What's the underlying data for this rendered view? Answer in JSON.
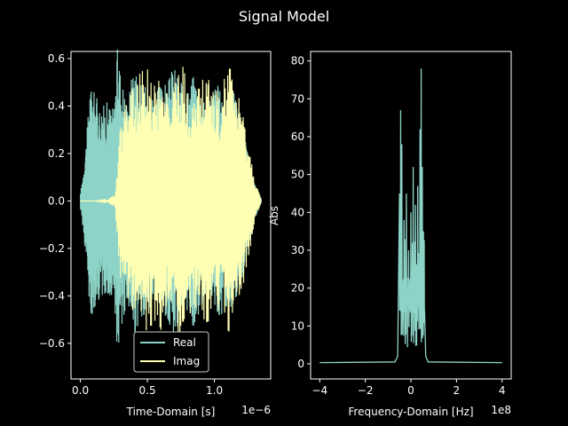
{
  "chart_data": {
    "title": "Signal Model",
    "colors": {
      "background": "#000000",
      "foreground": "#ffffff",
      "real": "#8dd3c7",
      "imag": "#ffffb3",
      "abs": "#8dd3c7"
    },
    "panels": [
      {
        "type": "line",
        "xlabel": "Time-Domain [s]",
        "ylabel": "",
        "x_offset_label": "1e−6",
        "xlim": [
          -0.07,
          1.42
        ],
        "ylim": [
          -0.75,
          0.63
        ],
        "xticks": [
          0.0,
          0.5,
          1.0
        ],
        "xtick_labels": [
          "0.0",
          "0.5",
          "1.0"
        ],
        "yticks": [
          -0.6,
          -0.4,
          -0.2,
          0.0,
          0.2,
          0.4,
          0.6
        ],
        "ytick_labels": [
          "−0.6",
          "−0.4",
          "−0.2",
          "0.0",
          "0.2",
          "0.4",
          "0.6"
        ],
        "legend": {
          "placement": "lower center",
          "entries": [
            "Real",
            "Imag"
          ]
        },
        "series": [
          {
            "name": "Real",
            "color": "#8dd3c7",
            "envelope": [
              [
                0.0,
                0.03
              ],
              [
                0.02,
                0.12
              ],
              [
                0.05,
                0.3
              ],
              [
                0.07,
                0.5
              ],
              [
                0.1,
                0.47
              ],
              [
                0.15,
                0.4
              ],
              [
                0.2,
                0.42
              ],
              [
                0.25,
                0.4
              ],
              [
                0.28,
                0.68
              ],
              [
                0.3,
                0.55
              ],
              [
                0.35,
                0.42
              ],
              [
                0.4,
                0.6
              ],
              [
                0.45,
                0.5
              ],
              [
                0.5,
                0.48
              ],
              [
                0.55,
                0.45
              ],
              [
                0.6,
                0.5
              ],
              [
                0.65,
                0.5
              ],
              [
                0.7,
                0.58
              ],
              [
                0.75,
                0.5
              ],
              [
                0.8,
                0.48
              ],
              [
                0.85,
                0.55
              ],
              [
                0.9,
                0.45
              ],
              [
                0.95,
                0.4
              ],
              [
                1.0,
                0.5
              ],
              [
                1.05,
                0.48
              ],
              [
                1.1,
                0.45
              ],
              [
                1.15,
                0.46
              ],
              [
                1.2,
                0.35
              ],
              [
                1.25,
                0.2
              ],
              [
                1.3,
                0.08
              ],
              [
                1.35,
                0.01
              ]
            ]
          },
          {
            "name": "Imag",
            "color": "#ffffb3",
            "envelope": [
              [
                0.0,
                0.0
              ],
              [
                0.1,
                0.0
              ],
              [
                0.2,
                0.005
              ],
              [
                0.26,
                0.03
              ],
              [
                0.3,
                0.35
              ],
              [
                0.35,
                0.45
              ],
              [
                0.4,
                0.5
              ],
              [
                0.45,
                0.55
              ],
              [
                0.5,
                0.58
              ],
              [
                0.55,
                0.5
              ],
              [
                0.6,
                0.55
              ],
              [
                0.65,
                0.48
              ],
              [
                0.7,
                0.52
              ],
              [
                0.75,
                0.6
              ],
              [
                0.8,
                0.5
              ],
              [
                0.85,
                0.45
              ],
              [
                0.9,
                0.5
              ],
              [
                0.95,
                0.55
              ],
              [
                1.0,
                0.48
              ],
              [
                1.05,
                0.45
              ],
              [
                1.1,
                0.6
              ],
              [
                1.15,
                0.5
              ],
              [
                1.2,
                0.4
              ],
              [
                1.25,
                0.25
              ],
              [
                1.3,
                0.1
              ],
              [
                1.35,
                0.0
              ]
            ]
          }
        ]
      },
      {
        "type": "line",
        "xlabel": "Frequency-Domain [Hz]",
        "ylabel": "Abs",
        "x_offset_label": "1e8",
        "xlim": [
          -4.4,
          4.4
        ],
        "ylim": [
          -4.0,
          82.5
        ],
        "xticks": [
          -4,
          -2,
          0,
          2,
          4
        ],
        "xtick_labels": [
          "−4",
          "−2",
          "0",
          "2",
          "4"
        ],
        "yticks": [
          0,
          10,
          20,
          30,
          40,
          50,
          60,
          70,
          80
        ],
        "ytick_labels": [
          "0",
          "10",
          "20",
          "30",
          "40",
          "50",
          "60",
          "70",
          "80"
        ],
        "series": [
          {
            "name": "",
            "color": "#8dd3c7",
            "peaks": [
              [
                -0.5,
                45
              ],
              [
                -0.45,
                67
              ],
              [
                -0.4,
                58
              ],
              [
                -0.3,
                38
              ],
              [
                -0.2,
                45
              ],
              [
                -0.1,
                30
              ],
              [
                0.0,
                40
              ],
              [
                0.1,
                52
              ],
              [
                0.2,
                42
              ],
              [
                0.3,
                47
              ],
              [
                0.4,
                62
              ],
              [
                0.45,
                78
              ],
              [
                0.5,
                52
              ],
              [
                0.55,
                35
              ],
              [
                0.6,
                14
              ]
            ]
          }
        ]
      }
    ]
  }
}
